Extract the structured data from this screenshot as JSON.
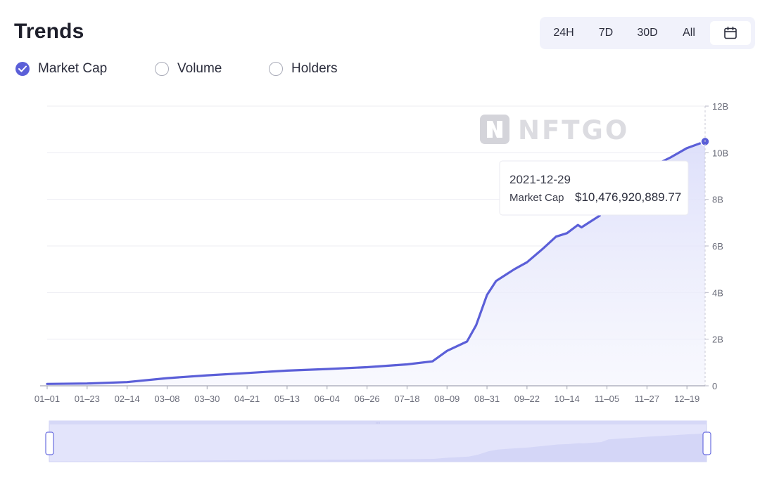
{
  "title": "Trends",
  "range_buttons": [
    "24H",
    "7D",
    "30D",
    "All"
  ],
  "metrics": [
    {
      "label": "Market Cap",
      "checked": true
    },
    {
      "label": "Volume",
      "checked": false
    },
    {
      "label": "Holders",
      "checked": false
    }
  ],
  "watermark": "NFTGO",
  "colors": {
    "accent": "#5b5fd8",
    "area": "#e6e7fb",
    "grid": "#ececf2"
  },
  "chart_data": {
    "type": "area",
    "series": [
      {
        "name": "Market Cap",
        "x": [
          "01-01",
          "01-23",
          "02-14",
          "03-08",
          "03-30",
          "04-21",
          "05-13",
          "06-04",
          "06-26",
          "07-18",
          "08-01",
          "08-09",
          "08-20",
          "08-25",
          "08-31",
          "09-05",
          "09-10",
          "09-15",
          "09-22",
          "10-01",
          "10-08",
          "10-14",
          "10-20",
          "10-22",
          "10-25",
          "11-01",
          "11-03",
          "11-05",
          "11-27",
          "12-10",
          "12-19",
          "12-29"
        ],
        "values": [
          0.08,
          0.1,
          0.16,
          0.33,
          0.45,
          0.55,
          0.65,
          0.72,
          0.8,
          0.92,
          1.05,
          1.5,
          1.9,
          2.6,
          3.9,
          4.5,
          4.75,
          5.0,
          5.3,
          5.9,
          6.4,
          6.55,
          6.9,
          6.8,
          6.95,
          7.3,
          7.8,
          8.3,
          9.3,
          9.8,
          10.2,
          10.48
        ]
      }
    ],
    "x_ticks": [
      "01-01",
      "01-23",
      "02-14",
      "03-08",
      "03-30",
      "04-21",
      "05-13",
      "06-04",
      "06-26",
      "07-18",
      "08-09",
      "08-31",
      "09-22",
      "10-14",
      "11-05",
      "11-27",
      "12-19"
    ],
    "y_ticks": [
      "0",
      "2B",
      "4B",
      "6B",
      "8B",
      "10B",
      "12B"
    ],
    "ylim": [
      0,
      12
    ],
    "y_unit": "B",
    "grid": true,
    "tooltip": {
      "date": "2021-12-29",
      "label": "Market Cap",
      "value": "$10,476,920,889.77"
    }
  }
}
